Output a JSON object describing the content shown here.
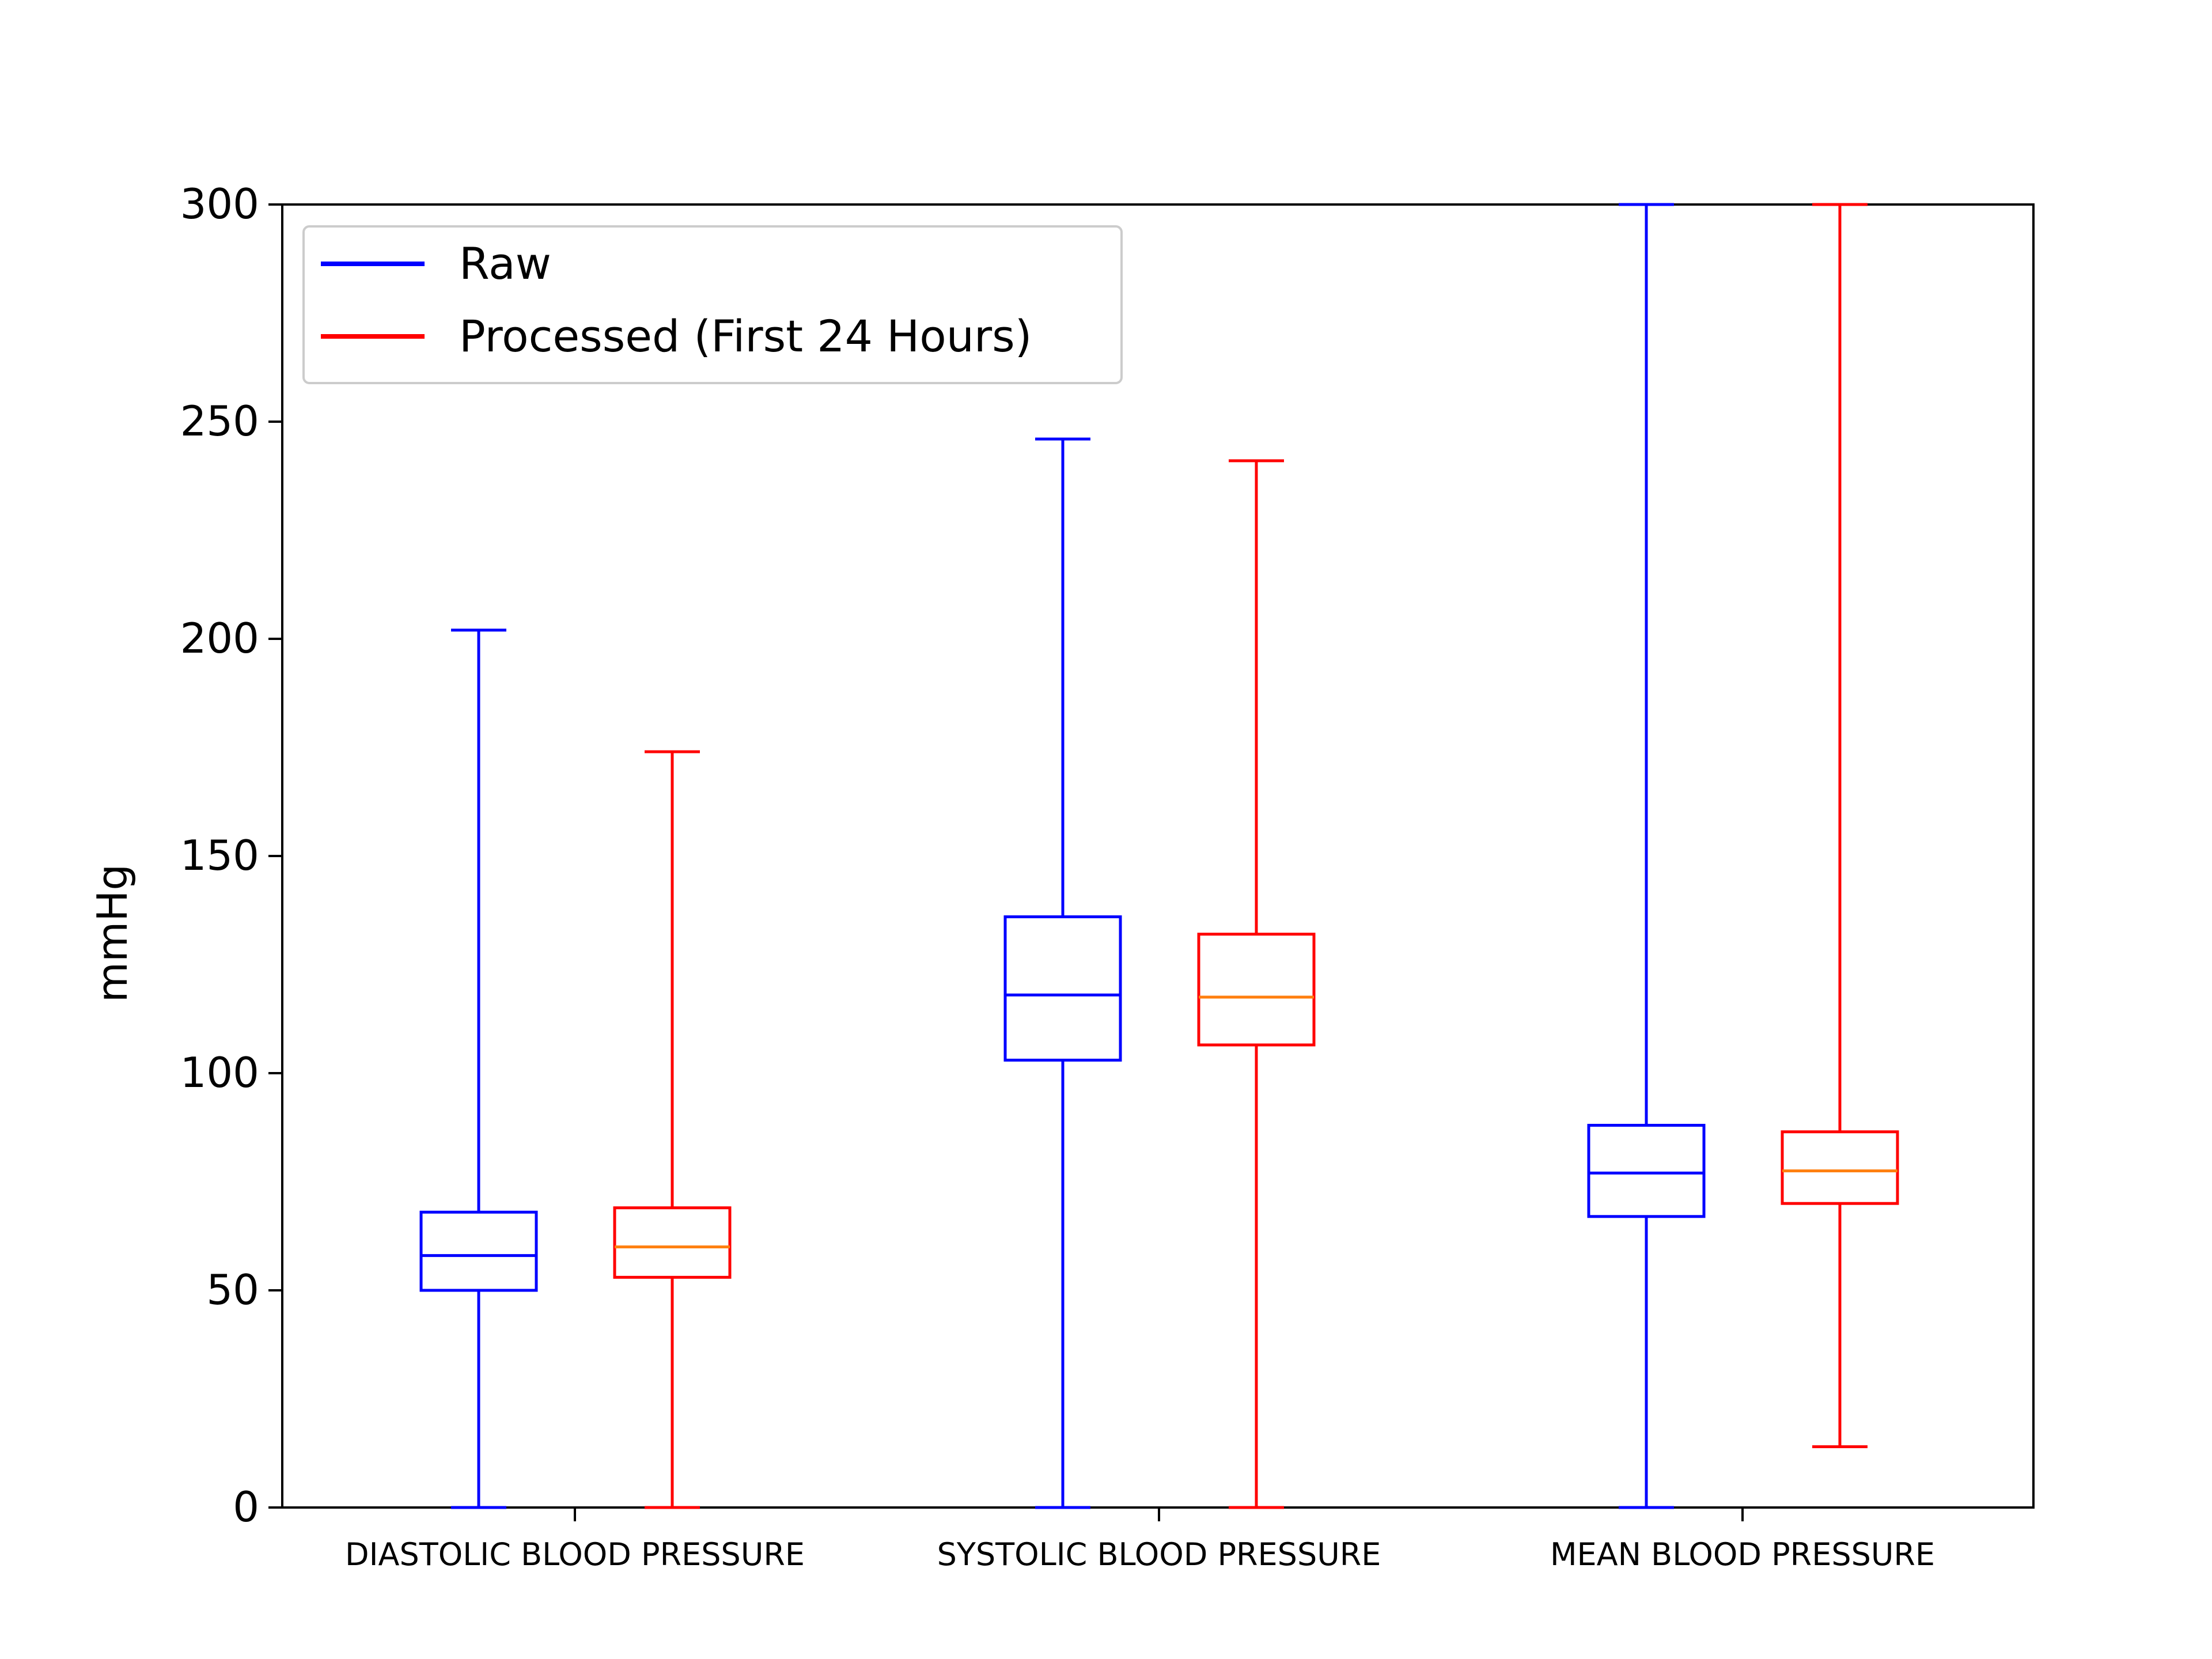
{
  "chart_data": {
    "type": "box",
    "title": "",
    "xlabel": "",
    "ylabel": "mmHg",
    "ylim": [
      0,
      300
    ],
    "yticks": [
      0,
      50,
      100,
      150,
      200,
      250,
      300
    ],
    "grid": false,
    "legend_position": "upper-left",
    "categories": [
      "DIASTOLIC BLOOD PRESSURE",
      "SYSTOLIC BLOOD PRESSURE",
      "MEAN BLOOD PRESSURE"
    ],
    "series": [
      {
        "name": "Raw",
        "color": "#0000ff",
        "median_color": "#0000ff",
        "boxes": [
          {
            "whisker_low": 0,
            "q1": 50,
            "median": 58,
            "q3": 68,
            "whisker_high": 202
          },
          {
            "whisker_low": 0,
            "q1": 103,
            "median": 118,
            "q3": 136,
            "whisker_high": 246
          },
          {
            "whisker_low": 0,
            "q1": 67,
            "median": 77,
            "q3": 88,
            "whisker_high": 300
          }
        ]
      },
      {
        "name": "Processed (First 24 Hours)",
        "color": "#ff0000",
        "median_color": "#ff7f0e",
        "boxes": [
          {
            "whisker_low": 0,
            "q1": 53,
            "median": 60,
            "q3": 69,
            "whisker_high": 174
          },
          {
            "whisker_low": 0,
            "q1": 106.5,
            "median": 117.5,
            "q3": 132,
            "whisker_high": 241
          },
          {
            "whisker_low": 14,
            "q1": 70,
            "median": 77.5,
            "q3": 86.5,
            "whisker_high": 300
          }
        ]
      }
    ]
  }
}
